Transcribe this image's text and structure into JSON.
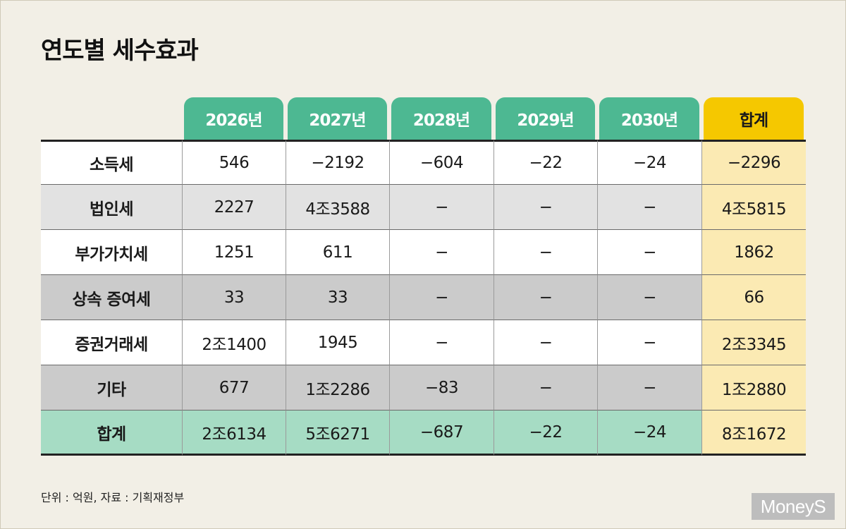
{
  "title": "연도별 세수효과",
  "chart_data": {
    "type": "table",
    "title": "연도별 세수효과",
    "columns": [
      "2026년",
      "2027년",
      "2028년",
      "2029년",
      "2030년",
      "합계"
    ],
    "rows": [
      {
        "label": "소득세",
        "values": [
          "546",
          "−2192",
          "−604",
          "−22",
          "−24",
          "−2296"
        ]
      },
      {
        "label": "법인세",
        "values": [
          "2227",
          "4조3588",
          "−",
          "−",
          "−",
          "4조5815"
        ]
      },
      {
        "label": "부가가치세",
        "values": [
          "1251",
          "611",
          "−",
          "−",
          "−",
          "1862"
        ]
      },
      {
        "label": "상속 증여세",
        "values": [
          "33",
          "33",
          "−",
          "−",
          "−",
          "66"
        ]
      },
      {
        "label": "증권거래세",
        "values": [
          "2조1400",
          "1945",
          "−",
          "−",
          "−",
          "2조3345"
        ]
      },
      {
        "label": "기타",
        "values": [
          "677",
          "1조2286",
          "−83",
          "−",
          "−",
          "1조2880"
        ]
      },
      {
        "label": "합계",
        "values": [
          "2조6134",
          "5조6271",
          "−687",
          "−22",
          "−24",
          "8조1672"
        ]
      }
    ]
  },
  "footer": "단위 : 억원, 자료 : 기획재정부",
  "logo": "MoneyS",
  "colors": {
    "year_header": "#4db892",
    "total_header": "#f5c800",
    "total_column": "#fbeab3",
    "sum_row": "#a6dcc4"
  }
}
